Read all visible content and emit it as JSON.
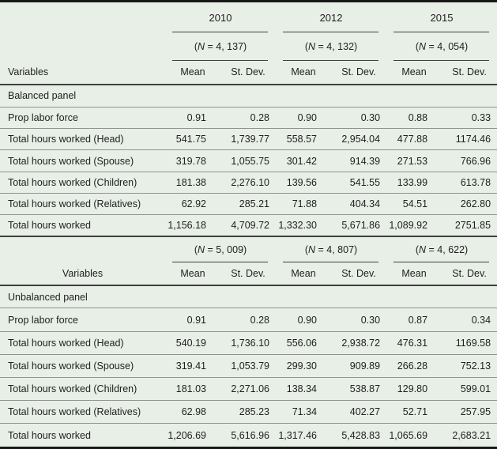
{
  "table": {
    "years": [
      "2010",
      "2012",
      "2015"
    ],
    "columns": {
      "variables": "Variables",
      "mean": "Mean",
      "stdev": "St. Dev."
    },
    "panel_top": {
      "n_labels": [
        "(N = 4, 137)",
        "(N = 4, 132)",
        "(N = 4, 054)"
      ],
      "section_label": "Balanced panel",
      "rows": [
        {
          "label": "Prop labor force",
          "values": [
            "0.91",
            "0.28",
            "0.90",
            "0.30",
            "0.88",
            "0.33"
          ]
        },
        {
          "label": "Total hours worked (Head)",
          "values": [
            "541.75",
            "1,739.77",
            "558.57",
            "2,954.04",
            "477.88",
            "1174.46"
          ]
        },
        {
          "label": "Total hours worked (Spouse)",
          "values": [
            "319.78",
            "1,055.75",
            "301.42",
            "914.39",
            "271.53",
            "766.96"
          ]
        },
        {
          "label": "Total hours worked (Children)",
          "values": [
            "181.38",
            "2,276.10",
            "139.56",
            "541.55",
            "133.99",
            "613.78"
          ]
        },
        {
          "label": "Total hours worked (Relatives)",
          "values": [
            "62.92",
            "285.21",
            "71.88",
            "404.34",
            "54.51",
            "262.80"
          ]
        },
        {
          "label": "Total hours worked",
          "values": [
            "1,156.18",
            "4,709.72",
            "1,332.30",
            "5,671.86",
            "1,089.92",
            "2751.85"
          ]
        }
      ]
    },
    "panel_bottom": {
      "n_labels": [
        "(N = 5, 009)",
        "(N = 4, 807)",
        "(N = 4, 622)"
      ],
      "section_label": "Unbalanced panel",
      "rows": [
        {
          "label": "Prop labor force",
          "values": [
            "0.91",
            "0.28",
            "0.90",
            "0.30",
            "0.87",
            "0.34"
          ]
        },
        {
          "label": "Total hours worked (Head)",
          "values": [
            "540.19",
            "1,736.10",
            "556.06",
            "2,938.72",
            "476.31",
            "1169.58"
          ]
        },
        {
          "label": "Total hours worked (Spouse)",
          "values": [
            "319.41",
            "1,053.79",
            "299.30",
            "909.89",
            "266.28",
            "752.13"
          ]
        },
        {
          "label": "Total hours worked (Children)",
          "values": [
            "181.03",
            "2,271.06",
            "138.34",
            "538.87",
            "129.80",
            "599.01"
          ]
        },
        {
          "label": "Total hours worked (Relatives)",
          "values": [
            "62.98",
            "285.23",
            "71.34",
            "402.27",
            "52.71",
            "257.95"
          ]
        },
        {
          "label": "Total hours worked",
          "values": [
            "1,206.69",
            "5,616.96",
            "1,317.46",
            "5,428.83",
            "1,065.69",
            "2,683.21"
          ]
        }
      ]
    },
    "colors": {
      "background": "#e8efe7",
      "outer_border": "#181818",
      "dark_rule": "#3f3f3f",
      "light_rule": "#8f948f",
      "text": "#1f1f1f"
    }
  }
}
